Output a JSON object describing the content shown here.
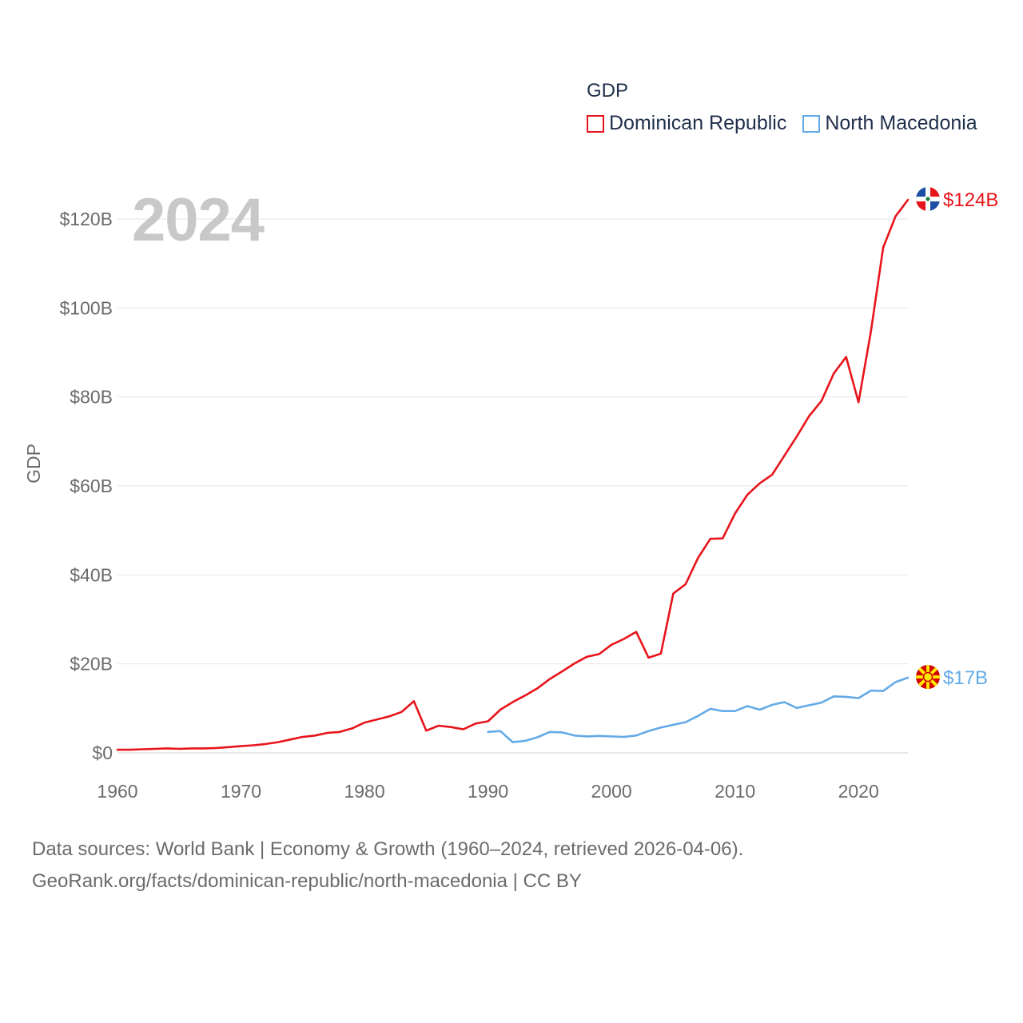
{
  "chart_data": {
    "type": "line",
    "title": "GDP",
    "xlabel": "",
    "ylabel": "GDP",
    "xlim": [
      1960,
      2024
    ],
    "ylim": [
      0,
      120
    ],
    "y_ticks": [
      {
        "value": 0,
        "label": "$0"
      },
      {
        "value": 20,
        "label": "$20B"
      },
      {
        "value": 40,
        "label": "$40B"
      },
      {
        "value": 60,
        "label": "$60B"
      },
      {
        "value": 80,
        "label": "$80B"
      },
      {
        "value": 100,
        "label": "$100B"
      },
      {
        "value": 120,
        "label": "$120B"
      }
    ],
    "x_ticks": [
      {
        "value": 1960,
        "label": "1960"
      },
      {
        "value": 1970,
        "label": "1970"
      },
      {
        "value": 1980,
        "label": "1980"
      },
      {
        "value": 1990,
        "label": "1990"
      },
      {
        "value": 2000,
        "label": "2000"
      },
      {
        "value": 2010,
        "label": "2010"
      },
      {
        "value": 2020,
        "label": "2020"
      }
    ],
    "grid": true,
    "legend_position": "top-right",
    "series": [
      {
        "name": "Dominican Republic",
        "color": "#e8141b",
        "end_label": "$124B",
        "flag_icon": "dominican-republic-flag-icon",
        "x": [
          1960,
          1961,
          1962,
          1963,
          1964,
          1965,
          1966,
          1967,
          1968,
          1969,
          1970,
          1971,
          1972,
          1973,
          1974,
          1975,
          1976,
          1977,
          1978,
          1979,
          1980,
          1981,
          1982,
          1983,
          1984,
          1985,
          1986,
          1987,
          1988,
          1989,
          1990,
          1991,
          1992,
          1993,
          1994,
          1995,
          1996,
          1997,
          1998,
          1999,
          2000,
          2001,
          2002,
          2003,
          2004,
          2005,
          2006,
          2007,
          2008,
          2009,
          2010,
          2011,
          2012,
          2013,
          2014,
          2015,
          2016,
          2017,
          2018,
          2019,
          2020,
          2021,
          2022,
          2023,
          2024
        ],
        "values": [
          0.7,
          0.7,
          0.8,
          0.9,
          1.0,
          0.9,
          1.0,
          1.0,
          1.1,
          1.3,
          1.5,
          1.7,
          2.0,
          2.4,
          3.0,
          3.6,
          3.9,
          4.5,
          4.7,
          5.5,
          6.8,
          7.5,
          8.2,
          9.2,
          11.6,
          5.0,
          6.1,
          5.8,
          5.3,
          6.6,
          7.1,
          9.7,
          11.4,
          12.9,
          14.5,
          16.6,
          18.3,
          20.1,
          21.6,
          22.2,
          24.3,
          25.6,
          27.2,
          21.4,
          22.3,
          35.8,
          37.9,
          43.8,
          48.1,
          48.2,
          53.8,
          58.0,
          60.6,
          62.5,
          66.8,
          71.1,
          75.7,
          79.1,
          85.3,
          89.0,
          78.8,
          94.6,
          113.6,
          120.6,
          124.3
        ]
      },
      {
        "name": "North Macedonia",
        "color": "#64aae6",
        "end_label": "$17B",
        "flag_icon": "north-macedonia-flag-icon",
        "x": [
          1990,
          1991,
          1992,
          1993,
          1994,
          1995,
          1996,
          1997,
          1998,
          1999,
          2000,
          2001,
          2002,
          2003,
          2004,
          2005,
          2006,
          2007,
          2008,
          2009,
          2010,
          2011,
          2012,
          2013,
          2014,
          2015,
          2016,
          2017,
          2018,
          2019,
          2020,
          2021,
          2022,
          2023,
          2024
        ],
        "values": [
          4.7,
          4.9,
          2.4,
          2.7,
          3.5,
          4.7,
          4.6,
          3.9,
          3.7,
          3.8,
          3.7,
          3.6,
          3.9,
          4.9,
          5.7,
          6.3,
          6.9,
          8.3,
          9.9,
          9.4,
          9.4,
          10.5,
          9.7,
          10.8,
          11.4,
          10.1,
          10.7,
          11.3,
          12.7,
          12.6,
          12.3,
          14.0,
          13.9,
          15.9,
          16.9
        ]
      }
    ]
  },
  "year_label": "2024",
  "source": {
    "line1": "Data sources: World Bank | Economy & Growth (1960–2024, retrieved 2026-04-06).",
    "line2": "GeoRank.org/facts/dominican-republic/north-macedonia | CC BY"
  }
}
